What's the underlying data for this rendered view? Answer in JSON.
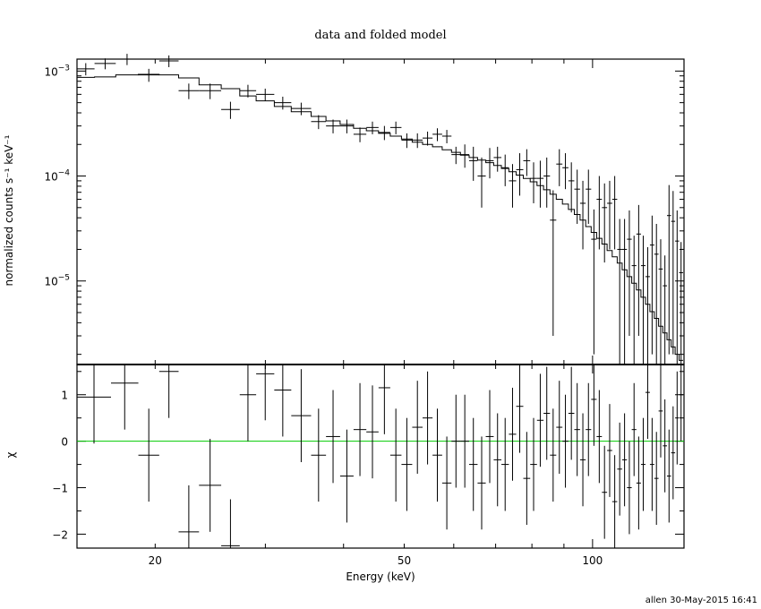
{
  "chart_data": [
    {
      "type": "scatter",
      "panel": "spectrum",
      "title": "data and folded model",
      "ylabel": "normalized counts s⁻¹ keV⁻¹",
      "xscale": "log",
      "yscale": "log",
      "xlim": [
        15,
        140
      ],
      "ylim": [
        1.6e-06,
        0.0013
      ],
      "y_ticks": [
        {
          "value": 0.001,
          "mantissa": "10",
          "exp": "−3"
        },
        {
          "value": 0.0001,
          "mantissa": "10",
          "exp": "−4"
        },
        {
          "value": 1e-05,
          "mantissa": "10",
          "exp": "−5"
        }
      ],
      "series": [
        {
          "points": [
            [
              15.0,
              16.0,
              0.00105,
              0.00014
            ],
            [
              16.0,
              17.3,
              0.00118,
              0.00014
            ],
            [
              17.3,
              18.8,
              0.0013,
              0.00016
            ],
            [
              18.8,
              20.3,
              0.00092,
              0.00013
            ],
            [
              20.3,
              21.8,
              0.00125,
              0.00016
            ],
            [
              21.8,
              23.5,
              0.00065,
              0.00011
            ],
            [
              23.5,
              25.5,
              0.00065,
              0.00011
            ],
            [
              25.5,
              27.3,
              0.00043,
              8e-05
            ],
            [
              27.3,
              29.0,
              0.00065,
              9e-05
            ],
            [
              29.0,
              31.0,
              0.0006,
              8e-05
            ],
            [
              31.0,
              33.0,
              0.0005,
              7e-05
            ],
            [
              33.0,
              35.5,
              0.00044,
              6e-05
            ],
            [
              35.5,
              37.5,
              0.00033,
              5e-05
            ],
            [
              37.5,
              39.5,
              0.0003,
              4.5e-05
            ],
            [
              39.5,
              41.5,
              0.0003,
              4.5e-05
            ],
            [
              41.5,
              43.5,
              0.00025,
              4e-05
            ],
            [
              43.5,
              45.5,
              0.00029,
              4e-05
            ],
            [
              45.5,
              47.5,
              0.00026,
              4e-05
            ],
            [
              47.5,
              49.5,
              0.00029,
              4e-05
            ],
            [
              49.5,
              51.5,
              0.00022,
              3.5e-05
            ],
            [
              51.5,
              53.5,
              0.00022,
              3.5e-05
            ],
            [
              53.5,
              55.5,
              0.00023,
              3.5e-05
            ],
            [
              55.5,
              57.5,
              0.00025,
              3.5e-05
            ],
            [
              57.5,
              59.5,
              0.00024,
              3.5e-05
            ],
            [
              59.5,
              61.5,
              0.00016,
              3e-05
            ],
            [
              61.5,
              63.5,
              0.00016,
              4e-05
            ],
            [
              63.5,
              65.5,
              0.00014,
              5e-05
            ],
            [
              65.5,
              67.5,
              0.0001,
              5e-05
            ],
            [
              67.5,
              69.5,
              0.00014,
              4.5e-05
            ],
            [
              69.5,
              71.5,
              0.00015,
              4e-05
            ],
            [
              71.5,
              73.5,
              0.00012,
              4e-05
            ],
            [
              73.5,
              75.5,
              9e-05,
              4e-05
            ],
            [
              75.5,
              77.5,
              0.000115,
              5e-05
            ],
            [
              77.5,
              79.5,
              0.00014,
              4e-05
            ],
            [
              79.5,
              81.5,
              9.5e-05,
              4e-05
            ],
            [
              81.5,
              83.5,
              9.5e-05,
              4.5e-05
            ],
            [
              83.5,
              85.5,
              0.0001,
              5e-05
            ],
            [
              85.5,
              87.5,
              3.8e-05,
              3.5e-05
            ],
            [
              87.5,
              89.5,
              0.00013,
              5e-05
            ],
            [
              89.5,
              91.5,
              0.00012,
              4.5e-05
            ],
            [
              91.5,
              93.5,
              9e-05,
              4.5e-05
            ],
            [
              93.5,
              95.5,
              7.5e-05,
              4e-05
            ],
            [
              95.5,
              97.5,
              5.5e-05,
              3.5e-05
            ],
            [
              97.5,
              99.5,
              7.5e-05,
              4e-05
            ],
            [
              99.5,
              101.5,
              2.5e-05,
              2.3e-05
            ],
            [
              101.5,
              103.5,
              6e-05,
              4e-05
            ],
            [
              103.5,
              105.5,
              5e-05,
              3.5e-05
            ],
            [
              105.5,
              107.5,
              5.5e-05,
              3.5e-05
            ],
            [
              107.5,
              109.5,
              6e-05,
              4e-05
            ],
            [
              109.5,
              111.5,
              2e-05,
              1.9e-05
            ],
            [
              111.5,
              113.5,
              2e-05,
              1.9e-05
            ],
            [
              113.5,
              115.5,
              2.5e-05,
              2.2e-05
            ],
            [
              115.5,
              117.5,
              1.4e-05,
              1.3e-05
            ],
            [
              117.5,
              119.5,
              2.8e-05,
              2.5e-05
            ],
            [
              119.5,
              121.5,
              1.4e-05,
              1.3e-05
            ],
            [
              121.5,
              123.5,
              1.1e-05,
              1e-05
            ],
            [
              123.5,
              125.5,
              2.2e-05,
              2e-05
            ],
            [
              125.5,
              127.5,
              1.8e-05,
              1.7e-05
            ],
            [
              127.5,
              129.5,
              1.3e-05,
              1.2e-05
            ],
            [
              129.5,
              131.5,
              9e-06,
              8.5e-06
            ],
            [
              131.5,
              133.5,
              4.2e-05,
              4e-05
            ],
            [
              133.5,
              135.5,
              3.7e-05,
              3.5e-05
            ],
            [
              135.5,
              137.5,
              2.4e-05,
              2.3e-05
            ],
            [
              137.5,
              139.5,
              1.2e-05,
              1.15e-05
            ]
          ]
        },
        {
          "model_steps": [
            [
              15.0,
              0.00087
            ],
            [
              16.0,
              0.00088
            ],
            [
              17.3,
              0.00092
            ],
            [
              18.8,
              0.00093
            ],
            [
              20.3,
              0.00092
            ],
            [
              21.8,
              0.00086
            ],
            [
              23.5,
              0.00074
            ],
            [
              25.5,
              0.00068
            ],
            [
              27.3,
              0.00058
            ],
            [
              29.0,
              0.00052
            ],
            [
              31.0,
              0.00046
            ],
            [
              33.0,
              0.00041
            ],
            [
              35.5,
              0.00037
            ],
            [
              37.5,
              0.000335
            ],
            [
              39.5,
              0.00031
            ],
            [
              41.5,
              0.000285
            ],
            [
              43.5,
              0.00027
            ],
            [
              45.5,
              0.000255
            ],
            [
              47.5,
              0.00024
            ],
            [
              49.5,
              0.000225
            ],
            [
              51.5,
              0.00021
            ],
            [
              53.5,
              0.0002
            ],
            [
              55.5,
              0.00019
            ],
            [
              57.5,
              0.000178
            ],
            [
              59.5,
              0.000168
            ],
            [
              61.5,
              0.000158
            ],
            [
              63.5,
              0.00015
            ],
            [
              65.5,
              0.000142
            ],
            [
              67.5,
              0.000134
            ],
            [
              69.5,
              0.000126
            ],
            [
              71.5,
              0.000118
            ],
            [
              73.5,
              0.00011
            ],
            [
              75.5,
              0.000102
            ],
            [
              77.5,
              9.5e-05
            ],
            [
              79.5,
              8.8e-05
            ],
            [
              81.5,
              8.1e-05
            ],
            [
              83.5,
              7.4e-05
            ],
            [
              85.5,
              6.7e-05
            ],
            [
              87.5,
              6e-05
            ],
            [
              89.5,
              5.4e-05
            ],
            [
              91.5,
              4.8e-05
            ],
            [
              93.5,
              4.3e-05
            ],
            [
              95.5,
              3.8e-05
            ],
            [
              97.5,
              3.3e-05
            ],
            [
              99.5,
              2.9e-05
            ],
            [
              101.5,
              2.55e-05
            ],
            [
              103.5,
              2.25e-05
            ],
            [
              105.5,
              1.95e-05
            ],
            [
              107.5,
              1.7e-05
            ],
            [
              109.5,
              1.48e-05
            ],
            [
              111.5,
              1.28e-05
            ],
            [
              113.5,
              1.1e-05
            ],
            [
              115.5,
              9.5e-06
            ],
            [
              117.5,
              8.2e-06
            ],
            [
              119.5,
              7e-06
            ],
            [
              121.5,
              6e-06
            ],
            [
              123.5,
              5.1e-06
            ],
            [
              125.5,
              4.4e-06
            ],
            [
              127.5,
              3.7e-06
            ],
            [
              129.5,
              3.2e-06
            ],
            [
              131.5,
              2.75e-06
            ],
            [
              133.5,
              2.35e-06
            ],
            [
              135.5,
              2e-06
            ],
            [
              137.5,
              1.75e-06
            ],
            [
              139.5,
              1.75e-06
            ]
          ]
        }
      ]
    },
    {
      "type": "scatter",
      "panel": "residuals",
      "xlabel": "Energy (keV)",
      "ylabel": "χ",
      "xscale": "log",
      "xlim": [
        15,
        140
      ],
      "ylim": [
        -2.3,
        1.65
      ],
      "x_tick_labels": [
        {
          "value": 20,
          "label": "20"
        },
        {
          "value": 50,
          "label": "50"
        },
        {
          "value": 100,
          "label": "100"
        }
      ],
      "y_tick_labels": [
        {
          "value": 1,
          "label": "1"
        },
        {
          "value": 0,
          "label": "0"
        },
        {
          "value": -1,
          "label": "−1"
        },
        {
          "value": -2,
          "label": "−2"
        }
      ],
      "zero_line_color": "#00cc00",
      "residuals": [
        [
          15.0,
          17.0,
          0.95
        ],
        [
          17.0,
          18.8,
          1.25
        ],
        [
          18.8,
          20.3,
          -0.3
        ],
        [
          20.3,
          21.8,
          1.5
        ],
        [
          21.8,
          23.5,
          -1.95
        ],
        [
          23.5,
          25.5,
          -0.95
        ],
        [
          25.5,
          27.3,
          -2.25
        ],
        [
          27.3,
          29.0,
          1.0
        ],
        [
          29.0,
          31.0,
          1.45
        ],
        [
          31.0,
          33.0,
          1.1
        ],
        [
          33.0,
          35.5,
          0.55
        ],
        [
          35.5,
          37.5,
          -0.3
        ],
        [
          37.5,
          39.5,
          0.1
        ],
        [
          39.5,
          41.5,
          -0.75
        ],
        [
          41.5,
          43.5,
          0.25
        ],
        [
          43.5,
          45.5,
          0.2
        ],
        [
          45.5,
          47.5,
          1.15
        ],
        [
          47.5,
          49.5,
          -0.3
        ],
        [
          49.5,
          51.5,
          -0.5
        ],
        [
          51.5,
          53.5,
          0.3
        ],
        [
          53.5,
          55.5,
          0.5
        ],
        [
          55.5,
          57.5,
          -0.3
        ],
        [
          57.5,
          59.5,
          -0.9
        ],
        [
          59.5,
          61.5,
          0.0
        ],
        [
          61.5,
          63.5,
          0.0
        ],
        [
          63.5,
          65.5,
          -0.5
        ],
        [
          65.5,
          67.5,
          -0.9
        ],
        [
          67.5,
          69.5,
          0.1
        ],
        [
          69.5,
          71.5,
          -0.4
        ],
        [
          71.5,
          73.5,
          -0.5
        ],
        [
          73.5,
          75.5,
          0.15
        ],
        [
          75.5,
          77.5,
          0.75
        ],
        [
          77.5,
          79.5,
          -0.8
        ],
        [
          79.5,
          81.5,
          -0.5
        ],
        [
          81.5,
          83.5,
          0.45
        ],
        [
          83.5,
          85.5,
          0.6
        ],
        [
          85.5,
          87.5,
          -0.3
        ],
        [
          87.5,
          89.5,
          0.3
        ],
        [
          89.5,
          91.5,
          0.0
        ],
        [
          91.5,
          93.5,
          0.6
        ],
        [
          93.5,
          95.5,
          0.25
        ],
        [
          95.5,
          97.5,
          -0.4
        ],
        [
          97.5,
          99.5,
          0.25
        ],
        [
          99.5,
          101.5,
          0.9
        ],
        [
          101.5,
          103.5,
          0.1
        ],
        [
          103.5,
          105.5,
          -1.1
        ],
        [
          105.5,
          107.5,
          -0.2
        ],
        [
          107.5,
          109.5,
          -1.3
        ],
        [
          109.5,
          111.5,
          -0.6
        ],
        [
          111.5,
          113.5,
          -0.4
        ],
        [
          113.5,
          115.5,
          -1.0
        ],
        [
          115.5,
          117.5,
          0.25
        ],
        [
          117.5,
          119.5,
          -0.9
        ],
        [
          119.5,
          121.5,
          -0.5
        ],
        [
          121.5,
          123.5,
          1.05
        ],
        [
          123.5,
          125.5,
          -0.5
        ],
        [
          125.5,
          127.5,
          -0.8
        ],
        [
          127.5,
          129.5,
          0.65
        ],
        [
          129.5,
          131.5,
          -0.1
        ],
        [
          131.5,
          133.5,
          -0.75
        ],
        [
          133.5,
          135.5,
          -0.25
        ],
        [
          135.5,
          137.5,
          0.5
        ],
        [
          137.5,
          139.5,
          1.0
        ]
      ]
    }
  ],
  "footer": {
    "stamp": "allen 30-May-2015 16:41"
  }
}
